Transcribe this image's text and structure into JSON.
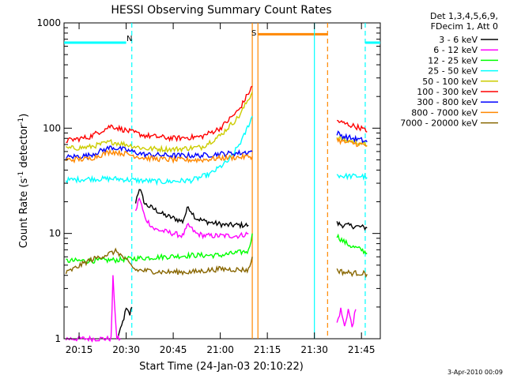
{
  "chart_data": {
    "type": "line",
    "title": "HESSI Observing Summary Count Rates",
    "xlabel": "Start Time (24-Jan-03 20:10:22)",
    "ylabel_main": "Count Rate (s",
    "ylabel_sup1": "-1",
    "ylabel_mid": " detector",
    "ylabel_sup2": "-1",
    "ylabel_end": ")",
    "yscale": "log",
    "ylim": [
      1,
      1000
    ],
    "xlim_minutes": [
      20.17,
      21.85
    ],
    "xticks": [
      {
        "t": 20.25,
        "label": "20:15"
      },
      {
        "t": 20.5,
        "label": "20:30"
      },
      {
        "t": 20.75,
        "label": "20:45"
      },
      {
        "t": 21.0,
        "label": "21:00"
      },
      {
        "t": 21.25,
        "label": "21:15"
      },
      {
        "t": 21.5,
        "label": "21:30"
      },
      {
        "t": 21.75,
        "label": "21:45"
      }
    ],
    "yticks": [
      {
        "v": 1,
        "label": "1"
      },
      {
        "v": 10,
        "label": "10"
      },
      {
        "v": 100,
        "label": "100"
      },
      {
        "v": 1000,
        "label": "1000"
      }
    ],
    "legend": {
      "header": [
        "Det 1,3,4,5,6,9,",
        "FDecim 1, Att 0"
      ],
      "position": "top-right",
      "entries": [
        {
          "label": "3 - 6 keV",
          "color": "#000000"
        },
        {
          "label": "6 - 12 keV",
          "color": "#ff00ff"
        },
        {
          "label": "12 - 25 keV",
          "color": "#00ff00"
        },
        {
          "label": "25 - 50 keV",
          "color": "#00ffff"
        },
        {
          "label": "50 - 100 keV",
          "color": "#cccc00"
        },
        {
          "label": "100 - 300 keV",
          "color": "#ff0000"
        },
        {
          "label": "300 - 800 keV",
          "color": "#0000ff"
        },
        {
          "label": "800 - 7000 keV",
          "color": "#ff8800"
        },
        {
          "label": "7000 - 20000 keV",
          "color": "#886600"
        }
      ]
    },
    "annotations": [
      {
        "text": "N",
        "color": "#00cccc"
      },
      {
        "text": "S",
        "color": "#ff8800"
      }
    ],
    "night_bars": [
      {
        "t0": 20.17,
        "t1": 20.5,
        "v": 650,
        "color": "#00ffff"
      },
      {
        "t0": 21.77,
        "t1": 21.85,
        "v": 650,
        "color": "#00ffff"
      }
    ],
    "saa_bar": {
      "t0": 21.2,
      "t1": 21.57,
      "v": 780,
      "color": "#ff8800"
    },
    "vlines": [
      {
        "t": 20.53,
        "color": "#00ffff",
        "dash": true
      },
      {
        "t": 21.17,
        "color": "#ff8800",
        "dash": false
      },
      {
        "t": 21.2,
        "color": "#ff8800",
        "dash": false
      },
      {
        "t": 21.5,
        "color": "#00ffff",
        "dash": false
      },
      {
        "t": 21.57,
        "color": "#ff8800",
        "dash": true
      },
      {
        "t": 21.77,
        "color": "#00ffff",
        "dash": true
      }
    ],
    "series": [
      {
        "name": "3 - 6 keV",
        "color": "#000000",
        "segments": [
          {
            "x": [
              20.45,
              20.47,
              20.5,
              20.52,
              20.53
            ],
            "y": [
              1.0,
              1.2,
              1.9,
              1.7,
              2.0
            ]
          },
          {
            "x": [
              20.55,
              20.57,
              20.6,
              20.65,
              20.7,
              20.75,
              20.8,
              20.83,
              20.87,
              20.92,
              20.97,
              21.03,
              21.1,
              21.15
            ],
            "y": [
              20,
              27,
              19,
              17,
              15,
              14,
              13,
              18,
              14,
              13,
              12.5,
              12,
              12,
              12
            ]
          },
          {
            "x": [
              21.62,
              21.65,
              21.7,
              21.75,
              21.78
            ],
            "y": [
              12.5,
              12,
              11.8,
              11.5,
              11.3
            ]
          }
        ]
      },
      {
        "name": "6 - 12 keV",
        "color": "#ff00ff",
        "segments": [
          {
            "x": [
              20.18,
              20.3,
              20.42,
              20.43,
              20.45,
              20.47
            ],
            "y": [
              1.0,
              1.0,
              1.0,
              3.8,
              1.0,
              1.0
            ]
          },
          {
            "x": [
              20.55,
              20.57,
              20.6,
              20.65,
              20.7,
              20.75,
              20.8,
              20.83,
              20.87,
              20.92,
              20.97,
              21.03,
              21.1,
              21.15
            ],
            "y": [
              16,
              22,
              14,
              11,
              10.5,
              10,
              9.5,
              12,
              10,
              9.5,
              9.5,
              9.5,
              9.5,
              10
            ]
          },
          {
            "x": [
              21.62,
              21.64,
              21.66,
              21.68,
              21.7,
              21.72
            ],
            "y": [
              1.4,
              1.9,
              1.3,
              1.9,
              1.3,
              1.9
            ]
          }
        ]
      },
      {
        "name": "12 - 25 keV",
        "color": "#00ff00",
        "segments": [
          {
            "x": [
              20.18,
              20.3,
              20.45,
              20.55,
              20.7,
              20.85,
              21.0,
              21.15,
              21.17
            ],
            "y": [
              5.5,
              5.5,
              5.6,
              5.8,
              6.0,
              6.2,
              6.2,
              6.8,
              10
            ]
          },
          {
            "x": [
              21.62,
              21.65,
              21.7,
              21.75,
              21.78
            ],
            "y": [
              9.5,
              8.5,
              7.5,
              7.0,
              6.5
            ]
          }
        ]
      },
      {
        "name": "25 - 50 keV",
        "color": "#00ffff",
        "segments": [
          {
            "x": [
              20.18,
              20.3,
              20.45,
              20.55,
              20.7,
              20.85,
              20.95,
              21.05,
              21.12,
              21.17
            ],
            "y": [
              32,
              33,
              33,
              32,
              31,
              32,
              37,
              50,
              80,
              130
            ]
          },
          {
            "x": [
              21.62,
              21.65,
              21.7,
              21.75,
              21.78
            ],
            "y": [
              36,
              35,
              35,
              35,
              34
            ]
          }
        ]
      },
      {
        "name": "50 - 100 keV",
        "color": "#cccc00",
        "segments": [
          {
            "x": [
              20.18,
              20.3,
              20.42,
              20.5,
              20.6,
              20.75,
              20.9,
              21.0,
              21.1,
              21.17
            ],
            "y": [
              64,
              66,
              74,
              70,
              64,
              63,
              66,
              85,
              130,
              220
            ]
          },
          {
            "x": [
              21.62,
              21.65,
              21.7,
              21.75,
              21.78
            ],
            "y": [
              82,
              78,
              75,
              72,
              68
            ]
          }
        ]
      },
      {
        "name": "100 - 300 keV",
        "color": "#ff0000",
        "segments": [
          {
            "x": [
              20.18,
              20.3,
              20.42,
              20.5,
              20.6,
              20.75,
              20.9,
              21.0,
              21.1,
              21.17
            ],
            "y": [
              76,
              82,
              105,
              95,
              85,
              80,
              83,
              100,
              150,
              250
            ]
          },
          {
            "x": [
              21.62,
              21.65,
              21.7,
              21.75,
              21.78
            ],
            "y": [
              118,
              112,
              106,
              100,
              92
            ]
          }
        ]
      },
      {
        "name": "300 - 800 keV",
        "color": "#0000ff",
        "segments": [
          {
            "x": [
              20.18,
              20.3,
              20.42,
              20.5,
              20.6,
              20.75,
              20.9,
              21.0,
              21.1,
              21.17
            ],
            "y": [
              53,
              55,
              66,
              62,
              56,
              55,
              55,
              57,
              58,
              60
            ]
          },
          {
            "x": [
              21.62,
              21.65,
              21.7,
              21.75,
              21.78
            ],
            "y": [
              90,
              84,
              80,
              77,
              74
            ]
          }
        ]
      },
      {
        "name": "800 - 7000 keV",
        "color": "#ff8800",
        "segments": [
          {
            "x": [
              20.18,
              20.3,
              20.42,
              20.5,
              20.6,
              20.75,
              20.9,
              21.0,
              21.1,
              21.17
            ],
            "y": [
              50,
              51,
              60,
              57,
              52,
              50,
              50,
              52,
              53,
              54
            ]
          },
          {
            "x": [
              21.62,
              21.65,
              21.7,
              21.75,
              21.78
            ],
            "y": [
              78,
              74,
              72,
              70,
              68
            ]
          }
        ]
      },
      {
        "name": "7000 - 20000 keV",
        "color": "#886600",
        "segments": [
          {
            "x": [
              20.18,
              20.3,
              20.45,
              20.55,
              20.7,
              20.85,
              21.0,
              21.15,
              21.17
            ],
            "y": [
              4.2,
              5.5,
              6.8,
              4.5,
              4.3,
              4.3,
              4.6,
              4.5,
              6.0
            ]
          },
          {
            "x": [
              21.62,
              21.65,
              21.7,
              21.75,
              21.78
            ],
            "y": [
              4.5,
              4.3,
              4.2,
              4.2,
              4.1
            ]
          }
        ]
      }
    ]
  },
  "footer": {
    "timestamp": "3-Apr-2010 00:09"
  }
}
